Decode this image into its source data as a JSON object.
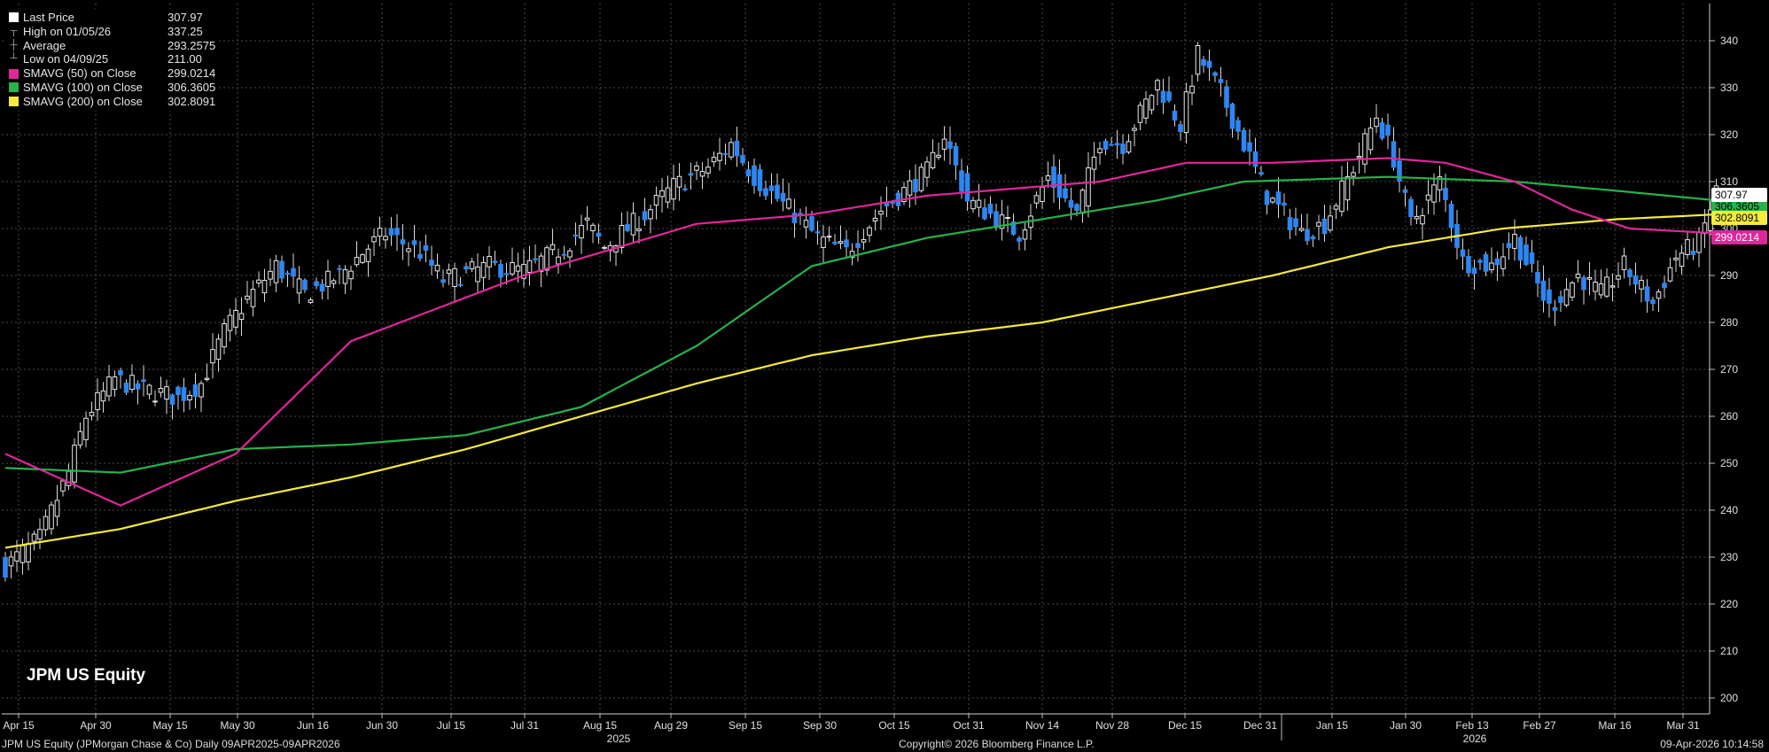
{
  "colors": {
    "background": "#000000",
    "grid": "#4a4a4a",
    "up_candle": "#ffffff",
    "down_candle": "#2f86f0",
    "sma50": "#e0269a",
    "sma100": "#25b34b",
    "sma200": "#f5ea3d"
  },
  "legend": [
    {
      "label": "Last Price",
      "value": "307.97",
      "icon": "white-square"
    },
    {
      "label": "High on 01/05/26",
      "value": "337.25",
      "icon": "high-tick"
    },
    {
      "label": "Average",
      "value": "293.2575",
      "icon": "average-tick"
    },
    {
      "label": "Low on 04/09/25",
      "value": "211.00",
      "icon": "low-tick"
    },
    {
      "label": "SMAVG (50)  on Close",
      "value": "299.0214",
      "icon": "magenta-square"
    },
    {
      "label": "SMAVG (100)  on Close",
      "value": "306.3605",
      "icon": "green-square"
    },
    {
      "label": "SMAVG (200)  on Close",
      "value": "302.8091",
      "icon": "yellow-square"
    }
  ],
  "ticker": "JPM US Equity",
  "footer": {
    "left": "JPM US Equity (JPMorgan Chase & Co) Daily 09APR2025-09APR2026",
    "center": "Copyright© 2026 Bloomberg Finance L.P.",
    "right": "09-Apr-2026 10:14:58"
  },
  "chart_data": {
    "type": "candlestick",
    "y_axis": {
      "min": 197,
      "max": 345,
      "ticks": [
        200,
        210,
        220,
        230,
        240,
        250,
        260,
        270,
        280,
        290,
        300,
        310,
        320,
        330,
        340
      ],
      "side": "right"
    },
    "x_ticks": [
      "Apr 15",
      "Apr 30",
      "May 15",
      "May 30",
      "Jun 16",
      "Jun 30",
      "Jul 15",
      "Jul 31",
      "Aug 15",
      "Aug 29",
      "Sep 15",
      "Sep 30",
      "Oct 15",
      "Oct 31",
      "Nov 14",
      "Nov 28",
      "Dec 15",
      "Dec 31",
      "Jan 15",
      "Jan 30",
      "Feb 13",
      "Feb 27",
      "Mar 16",
      "Mar 31"
    ],
    "year_labels": [
      "2025",
      "2026"
    ],
    "grid": true,
    "price_path": [
      [
        0,
        228
      ],
      [
        6,
        234
      ],
      [
        11,
        248
      ],
      [
        14,
        260
      ],
      [
        19,
        268
      ],
      [
        23,
        266
      ],
      [
        30,
        264
      ],
      [
        34,
        267
      ],
      [
        38,
        278
      ],
      [
        42,
        285
      ],
      [
        47,
        292
      ],
      [
        52,
        286
      ],
      [
        58,
        290
      ],
      [
        63,
        296
      ],
      [
        66,
        299
      ],
      [
        72,
        295
      ],
      [
        76,
        289
      ],
      [
        84,
        292
      ],
      [
        90,
        291
      ],
      [
        97,
        296
      ],
      [
        101,
        301
      ],
      [
        104,
        296
      ],
      [
        111,
        303
      ],
      [
        116,
        309
      ],
      [
        122,
        313
      ],
      [
        126,
        318
      ],
      [
        130,
        311
      ],
      [
        137,
        303
      ],
      [
        141,
        298
      ],
      [
        146,
        295
      ],
      [
        152,
        304
      ],
      [
        156,
        308
      ],
      [
        160,
        312
      ],
      [
        163,
        320
      ],
      [
        167,
        306
      ],
      [
        171,
        303
      ],
      [
        176,
        299
      ],
      [
        181,
        311
      ],
      [
        186,
        303
      ],
      [
        190,
        319
      ],
      [
        194,
        318
      ],
      [
        200,
        331
      ],
      [
        204,
        322
      ],
      [
        207,
        337
      ],
      [
        211,
        329
      ],
      [
        215,
        318
      ],
      [
        219,
        307
      ],
      [
        225,
        299
      ],
      [
        229,
        301
      ],
      [
        234,
        313
      ],
      [
        238,
        324
      ],
      [
        241,
        315
      ],
      [
        244,
        301
      ],
      [
        249,
        310
      ],
      [
        253,
        293
      ],
      [
        258,
        292
      ],
      [
        262,
        298
      ],
      [
        268,
        283
      ],
      [
        273,
        290
      ],
      [
        277,
        286
      ],
      [
        281,
        292
      ],
      [
        286,
        284
      ],
      [
        290,
        294
      ],
      [
        294,
        297
      ],
      [
        297,
        308
      ]
    ],
    "sma50": [
      [
        0,
        252
      ],
      [
        20,
        241
      ],
      [
        40,
        252
      ],
      [
        60,
        276
      ],
      [
        90,
        290
      ],
      [
        120,
        301
      ],
      [
        140,
        303
      ],
      [
        160,
        307
      ],
      [
        190,
        310
      ],
      [
        205,
        314
      ],
      [
        220,
        314
      ],
      [
        240,
        315
      ],
      [
        250,
        314
      ],
      [
        262,
        310
      ],
      [
        272,
        304
      ],
      [
        282,
        300
      ],
      [
        297,
        299
      ]
    ],
    "sma100": [
      [
        0,
        249
      ],
      [
        20,
        248
      ],
      [
        40,
        253
      ],
      [
        60,
        254
      ],
      [
        80,
        256
      ],
      [
        100,
        262
      ],
      [
        120,
        275
      ],
      [
        140,
        292
      ],
      [
        160,
        298
      ],
      [
        180,
        302
      ],
      [
        200,
        306
      ],
      [
        215,
        310
      ],
      [
        240,
        311
      ],
      [
        262,
        310
      ],
      [
        280,
        308
      ],
      [
        297,
        306
      ]
    ],
    "sma200": [
      [
        0,
        232
      ],
      [
        20,
        236
      ],
      [
        40,
        242
      ],
      [
        60,
        247
      ],
      [
        80,
        253
      ],
      [
        100,
        260
      ],
      [
        120,
        267
      ],
      [
        140,
        273
      ],
      [
        160,
        277
      ],
      [
        180,
        280
      ],
      [
        200,
        285
      ],
      [
        220,
        290
      ],
      [
        240,
        296
      ],
      [
        260,
        300
      ],
      [
        280,
        302
      ],
      [
        297,
        303
      ]
    ],
    "axis_labels": [
      {
        "value": "307.97",
        "kind": "last"
      },
      {
        "value": "302.8091",
        "kind": "sma200"
      },
      {
        "value": "299.0214",
        "kind": "sma50"
      },
      {
        "value": "306.3605",
        "kind": "sma100"
      }
    ]
  }
}
